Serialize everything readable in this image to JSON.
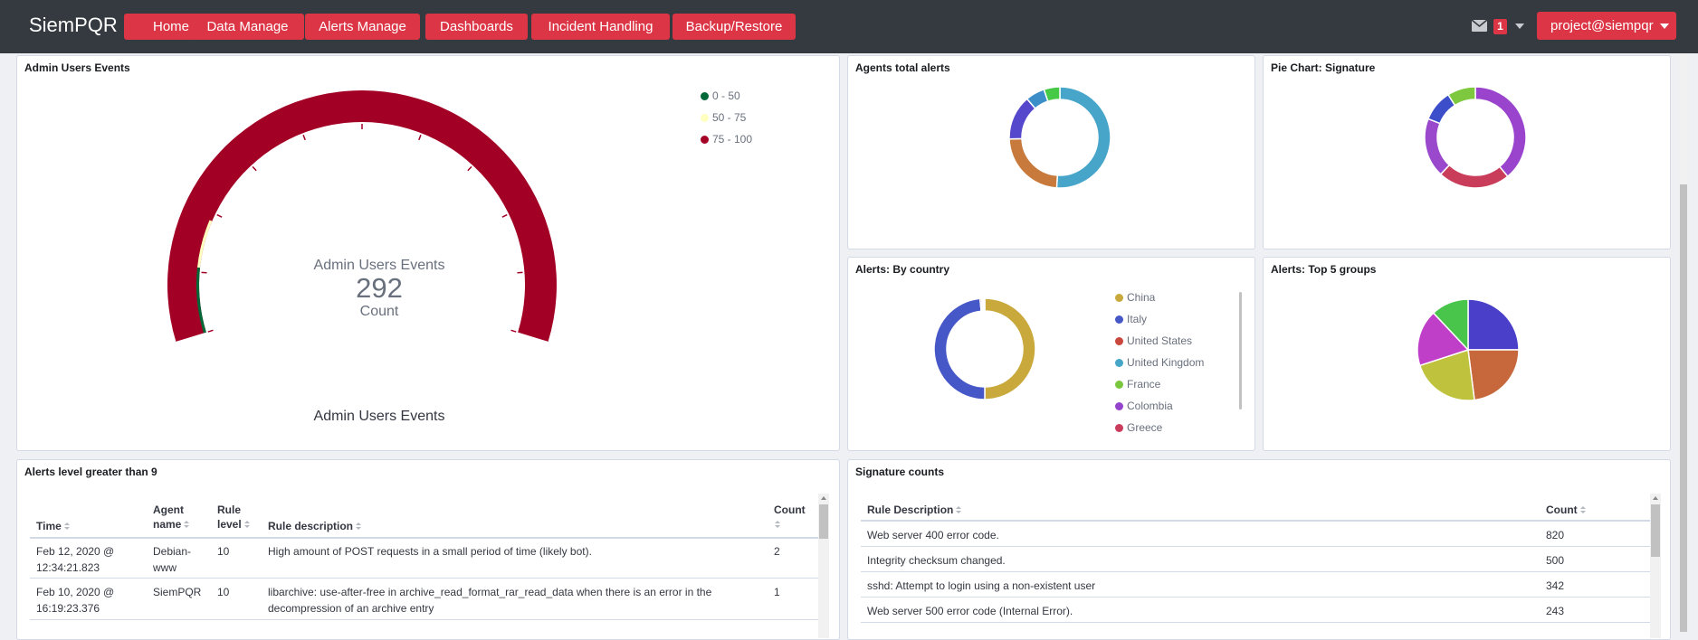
{
  "navbar": {
    "brand": "SiemPQR",
    "buttons": [
      "Home",
      "Data Manage",
      "Alerts Manage",
      "Dashboards",
      "Incident Handling",
      "Backup/Restore"
    ],
    "mail_count": "1",
    "user": "project@siempqr"
  },
  "colors": {
    "navbar": "#343a40",
    "accent": "#dc3545",
    "gauge_red": "#a30026"
  },
  "panels": {
    "admin_users": {
      "title": "Admin Users Events",
      "legend": [
        {
          "label": "0 - 50",
          "color": "#006837"
        },
        {
          "label": "50 - 75",
          "color": "#ffffbf"
        },
        {
          "label": "75 - 100",
          "color": "#a50026"
        }
      ],
      "gauge_title": "Admin Users Events",
      "value": "292",
      "metric": "Count",
      "footer": "Admin Users Events"
    },
    "agents_total": {
      "title": "Agents total alerts"
    },
    "pie_signature": {
      "title": "Pie Chart: Signature"
    },
    "by_country": {
      "title": "Alerts: By country",
      "legend": [
        {
          "label": "China",
          "color": "#c9a93c"
        },
        {
          "label": "Italy",
          "color": "#4657c8"
        },
        {
          "label": "United States",
          "color": "#c9473c"
        },
        {
          "label": "United Kingdom",
          "color": "#46a6c8"
        },
        {
          "label": "France",
          "color": "#7ac73e"
        },
        {
          "label": "Colombia",
          "color": "#9443cc"
        },
        {
          "label": "Greece",
          "color": "#c93c5c"
        }
      ]
    },
    "top5_groups": {
      "title": "Alerts: Top 5 groups"
    },
    "alerts_level": {
      "title": "Alerts level greater than 9",
      "columns": [
        "Time",
        "Agent name",
        "Rule level",
        "Rule description",
        "Count"
      ],
      "rows": [
        {
          "time": "Feb 12, 2020 @ 12:34:21.823",
          "agent": "Debian-www",
          "level": "10",
          "desc": "High amount of POST requests in a small period of time (likely bot).",
          "count": "2"
        },
        {
          "time": "Feb 10, 2020 @ 16:19:23.376",
          "agent": "SiemPQR",
          "level": "10",
          "desc": "libarchive: use-after-free in archive_read_format_rar_read_data when there is an error in the decompression of an archive entry",
          "count": "1"
        }
      ]
    },
    "signature_counts": {
      "title": "Signature counts",
      "columns": [
        "Rule Description",
        "Count"
      ],
      "rows": [
        {
          "desc": "Web server 400 error code.",
          "count": "820"
        },
        {
          "desc": "Integrity checksum changed.",
          "count": "500"
        },
        {
          "desc": "sshd: Attempt to login using a non-existent user",
          "count": "342"
        },
        {
          "desc": "Web server 500 error code (Internal Error).",
          "count": "243"
        }
      ]
    }
  },
  "chart_data": [
    {
      "type": "gauge",
      "title": "Admin Users Events",
      "value": 292,
      "metric": "Count",
      "ranges": [
        [
          0,
          50
        ],
        [
          50,
          75
        ],
        [
          75,
          100
        ]
      ],
      "range_labels": [
        "0 - 50",
        "50 - 75",
        "75 - 100"
      ],
      "range_colors": [
        "#006837",
        "#ffffbf",
        "#a50026"
      ]
    },
    {
      "type": "pie",
      "title": "Agents total alerts",
      "donut": true,
      "colors": [
        "#47a5c9",
        "#c77a3c",
        "#5548cc",
        "#3c8ec9",
        "#47c948"
      ],
      "values": [
        50,
        23,
        14,
        6,
        5
      ]
    },
    {
      "type": "pie",
      "title": "Pie Chart: Signature",
      "donut": true,
      "colors": [
        "#9a43cc",
        "#c93c5a",
        "#9a48cc",
        "#3c4ec9",
        "#7dc83e"
      ],
      "values": [
        39,
        23,
        19,
        10,
        9
      ]
    },
    {
      "type": "pie",
      "title": "Alerts: By country",
      "donut": true,
      "categories": [
        "China",
        "Italy",
        "United States",
        "United Kingdom",
        "France",
        "Colombia",
        "Greece"
      ],
      "colors": [
        "#c9a93c",
        "#4657c8",
        "#c9473c",
        "#46a6c8",
        "#7ac73e",
        "#9443cc",
        "#c93c5c"
      ],
      "values": [
        50,
        48.5,
        0.5,
        0.2,
        0.2,
        0.3,
        0.3
      ]
    },
    {
      "type": "pie",
      "title": "Alerts: Top 5 groups",
      "donut": false,
      "colors": [
        "#4a3fc8",
        "#c6683c",
        "#bfc23c",
        "#bf3fc8",
        "#48c54a"
      ],
      "values": [
        25,
        23,
        22,
        18,
        12
      ]
    }
  ]
}
